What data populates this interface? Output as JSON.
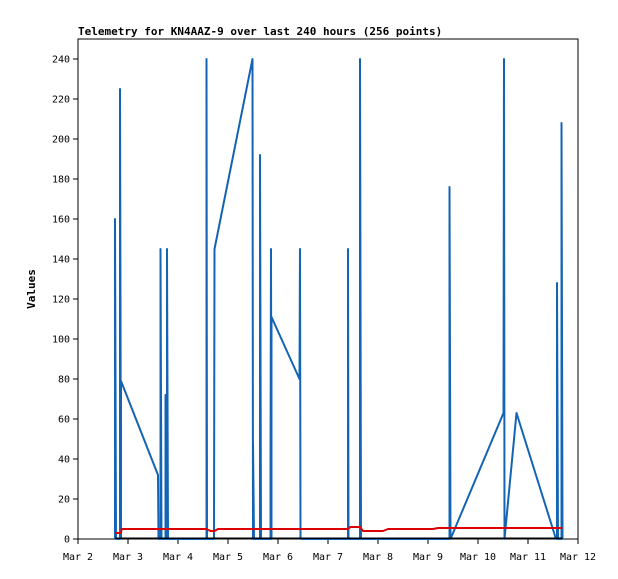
{
  "chart_data": {
    "type": "line",
    "title": "Telemetry for KN4AAZ-9 over last 240 hours (256 points)",
    "xlabel": "",
    "ylabel": "Values",
    "ylim": [
      0,
      250
    ],
    "yticks": [
      0,
      20,
      40,
      60,
      80,
      100,
      120,
      140,
      160,
      180,
      200,
      220,
      240
    ],
    "xticks": [
      "Mar 2",
      "Mar 3",
      "Mar 4",
      "Mar 5",
      "Mar 6",
      "Mar 7",
      "Mar 8",
      "Mar 9",
      "Mar 10",
      "Mar 11",
      "Mar 12"
    ],
    "xlim": [
      0,
      10
    ],
    "grid": false,
    "colors": {
      "blue": "#1464b4",
      "red": "#dc0000",
      "black": "#000000"
    },
    "series": [
      {
        "color": "blue",
        "points": [
          [
            0.74,
            0
          ],
          [
            0.74,
            160
          ],
          [
            0.76,
            0
          ],
          [
            0.84,
            0
          ],
          [
            0.84,
            225
          ],
          [
            0.86,
            0
          ],
          [
            0.86,
            79
          ],
          [
            1.6,
            32
          ],
          [
            1.61,
            0
          ],
          [
            1.65,
            0
          ],
          [
            1.65,
            145
          ],
          [
            1.67,
            0
          ],
          [
            1.75,
            0
          ],
          [
            1.75,
            72
          ],
          [
            1.78,
            0
          ],
          [
            1.78,
            145
          ],
          [
            1.8,
            0
          ],
          [
            2.57,
            0
          ],
          [
            2.57,
            240
          ],
          [
            2.58,
            0
          ],
          [
            2.72,
            0
          ],
          [
            2.73,
            145
          ],
          [
            3.49,
            240
          ],
          [
            3.5,
            0
          ],
          [
            3.5,
            48
          ],
          [
            3.52,
            0
          ],
          [
            3.64,
            0
          ],
          [
            3.64,
            192
          ],
          [
            3.66,
            0
          ],
          [
            3.85,
            0
          ],
          [
            3.85,
            30
          ],
          [
            3.86,
            145
          ],
          [
            3.87,
            0
          ],
          [
            3.87,
            111
          ],
          [
            4.43,
            80
          ],
          [
            4.44,
            145
          ],
          [
            4.45,
            0
          ],
          [
            5.4,
            0
          ],
          [
            5.4,
            145
          ],
          [
            5.41,
            0
          ],
          [
            5.64,
            0
          ],
          [
            5.64,
            240
          ],
          [
            5.66,
            0
          ],
          [
            7.43,
            0
          ],
          [
            7.43,
            176
          ],
          [
            7.45,
            0
          ],
          [
            8.51,
            63
          ],
          [
            8.52,
            240
          ],
          [
            8.53,
            0
          ],
          [
            8.77,
            63
          ],
          [
            9.56,
            0
          ],
          [
            9.58,
            0
          ],
          [
            9.58,
            128
          ],
          [
            9.6,
            0
          ],
          [
            9.67,
            0
          ],
          [
            9.67,
            208
          ],
          [
            9.69,
            0
          ]
        ]
      },
      {
        "color": "red",
        "points": [
          [
            0.74,
            3
          ],
          [
            0.86,
            3
          ],
          [
            0.87,
            5
          ],
          [
            2.57,
            5
          ],
          [
            2.65,
            4
          ],
          [
            2.73,
            4
          ],
          [
            2.8,
            5
          ],
          [
            5.4,
            5
          ],
          [
            5.45,
            6
          ],
          [
            5.64,
            6
          ],
          [
            5.7,
            4
          ],
          [
            6.1,
            4
          ],
          [
            6.2,
            5
          ],
          [
            7.1,
            5
          ],
          [
            7.2,
            5.5
          ],
          [
            9.69,
            5.5
          ]
        ]
      },
      {
        "color": "black",
        "points": [
          [
            0.74,
            0.4
          ],
          [
            9.69,
            0.4
          ]
        ]
      }
    ]
  }
}
